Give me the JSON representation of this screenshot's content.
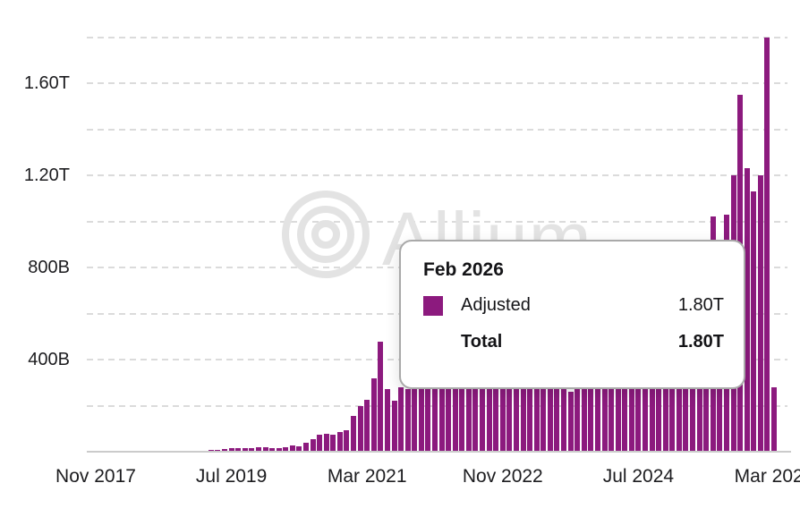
{
  "watermark": {
    "text": "Allium",
    "logo_icon": "concentric-circles"
  },
  "colors": {
    "bar": "#8C1A7E",
    "gridline": "#dbdbdb",
    "axis_line": "#cbcbcb",
    "text": "#1c1c1f",
    "watermark": "#e3e3e3",
    "tooltip_border": "#a9a9a9"
  },
  "tooltip": {
    "title": "Feb 2026",
    "adjusted_label": "Adjusted",
    "adjusted_value": "1.80T",
    "total_label": "Total",
    "total_value": "1.80T"
  },
  "chart_data": {
    "type": "bar",
    "title": "",
    "xlabel": "",
    "ylabel": "",
    "unit": "USD volume, B = billions, T = trillions",
    "ylim": [
      0,
      1850
    ],
    "grid": "dashed horizontal, every 200B",
    "legend_position": "tooltip-only",
    "y_ticks": [
      {
        "label": "400B",
        "value": 400
      },
      {
        "label": "800B",
        "value": 800
      },
      {
        "label": "1.20T",
        "value": 1200
      },
      {
        "label": "1.60T",
        "value": 1600
      }
    ],
    "y_gridline_values": [
      200,
      400,
      600,
      800,
      1000,
      1200,
      1400,
      1600,
      1800
    ],
    "x_ticks": [
      {
        "label": "Nov 2017",
        "month_index": 0
      },
      {
        "label": "Jul 2019",
        "month_index": 20
      },
      {
        "label": "Mar 2021",
        "month_index": 40
      },
      {
        "label": "Nov 2022",
        "month_index": 60
      },
      {
        "label": "Jul 2024",
        "month_index": 80
      },
      {
        "label": "Mar 2026",
        "month_index": 100
      }
    ],
    "series_name": "Adjusted",
    "months": [
      {
        "label": "Nov 2017",
        "value": 0.5
      },
      {
        "label": "Dec 2017",
        "value": 0.8
      },
      {
        "label": "Jan 2018",
        "value": 1.0
      },
      {
        "label": "Feb 2018",
        "value": 1.0
      },
      {
        "label": "Mar 2018",
        "value": 1.2
      },
      {
        "label": "Apr 2018",
        "value": 1.3
      },
      {
        "label": "May 2018",
        "value": 1.5
      },
      {
        "label": "Jun 2018",
        "value": 1.6
      },
      {
        "label": "Jul 2018",
        "value": 1.8
      },
      {
        "label": "Aug 2018",
        "value": 2.0
      },
      {
        "label": "Sep 2018",
        "value": 2.2
      },
      {
        "label": "Oct 2018",
        "value": 2.4
      },
      {
        "label": "Nov 2018",
        "value": 2.6
      },
      {
        "label": "Dec 2018",
        "value": 2.8
      },
      {
        "label": "Jan 2019",
        "value": 3
      },
      {
        "label": "Feb 2019",
        "value": 3
      },
      {
        "label": "Mar 2019",
        "value": 4
      },
      {
        "label": "Apr 2019",
        "value": 6
      },
      {
        "label": "May 2019",
        "value": 8
      },
      {
        "label": "Jun 2019",
        "value": 12
      },
      {
        "label": "Jul 2019",
        "value": 16
      },
      {
        "label": "Aug 2019",
        "value": 14
      },
      {
        "label": "Sep 2019",
        "value": 14
      },
      {
        "label": "Oct 2019",
        "value": 17
      },
      {
        "label": "Nov 2019",
        "value": 19
      },
      {
        "label": "Dec 2019",
        "value": 19
      },
      {
        "label": "Jan 2020",
        "value": 17
      },
      {
        "label": "Feb 2020",
        "value": 16
      },
      {
        "label": "Mar 2020",
        "value": 21
      },
      {
        "label": "Apr 2020",
        "value": 27
      },
      {
        "label": "May 2020",
        "value": 24
      },
      {
        "label": "Jun 2020",
        "value": 40
      },
      {
        "label": "Jul 2020",
        "value": 53
      },
      {
        "label": "Aug 2020",
        "value": 75
      },
      {
        "label": "Sep 2020",
        "value": 78
      },
      {
        "label": "Oct 2020",
        "value": 75
      },
      {
        "label": "Nov 2020",
        "value": 85
      },
      {
        "label": "Dec 2020",
        "value": 95
      },
      {
        "label": "Jan 2021",
        "value": 155
      },
      {
        "label": "Feb 2021",
        "value": 200
      },
      {
        "label": "Mar 2021",
        "value": 225
      },
      {
        "label": "Apr 2021",
        "value": 320
      },
      {
        "label": "May 2021",
        "value": 478
      },
      {
        "label": "Jun 2021",
        "value": 272
      },
      {
        "label": "Jul 2021",
        "value": 222
      },
      {
        "label": "Aug 2021",
        "value": 280
      },
      {
        "label": "Sep 2021",
        "value": 270
      },
      {
        "label": "Oct 2021",
        "value": 310
      },
      {
        "label": "Nov 2021",
        "value": 345
      },
      {
        "label": "Dec 2021",
        "value": 360
      },
      {
        "label": "Jan 2022",
        "value": 380
      },
      {
        "label": "Feb 2022",
        "value": 350
      },
      {
        "label": "Mar 2022",
        "value": 390
      },
      {
        "label": "Apr 2022",
        "value": 410
      },
      {
        "label": "May 2022",
        "value": 490
      },
      {
        "label": "Jun 2022",
        "value": 450
      },
      {
        "label": "Jul 2022",
        "value": 380
      },
      {
        "label": "Aug 2022",
        "value": 360
      },
      {
        "label": "Sep 2022",
        "value": 380
      },
      {
        "label": "Oct 2022",
        "value": 400
      },
      {
        "label": "Nov 2022",
        "value": 460
      },
      {
        "label": "Dec 2022",
        "value": 370
      },
      {
        "label": "Jan 2023",
        "value": 350
      },
      {
        "label": "Feb 2023",
        "value": 370
      },
      {
        "label": "Mar 2023",
        "value": 430
      },
      {
        "label": "Apr 2023",
        "value": 370
      },
      {
        "label": "May 2023",
        "value": 330
      },
      {
        "label": "Jun 2023",
        "value": 310
      },
      {
        "label": "Jul 2023",
        "value": 295
      },
      {
        "label": "Aug 2023",
        "value": 285
      },
      {
        "label": "Sep 2023",
        "value": 262
      },
      {
        "label": "Oct 2023",
        "value": 300
      },
      {
        "label": "Nov 2023",
        "value": 340
      },
      {
        "label": "Dec 2023",
        "value": 390
      },
      {
        "label": "Jan 2024",
        "value": 430
      },
      {
        "label": "Feb 2024",
        "value": 490
      },
      {
        "label": "Mar 2024",
        "value": 570
      },
      {
        "label": "Apr 2024",
        "value": 530
      },
      {
        "label": "May 2024",
        "value": 550
      },
      {
        "label": "Jun 2024",
        "value": 510
      },
      {
        "label": "Jul 2024",
        "value": 490
      },
      {
        "label": "Aug 2024",
        "value": 510
      },
      {
        "label": "Sep 2024",
        "value": 530
      },
      {
        "label": "Oct 2024",
        "value": 570
      },
      {
        "label": "Nov 2024",
        "value": 650
      },
      {
        "label": "Dec 2024",
        "value": 710
      },
      {
        "label": "Jan 2025",
        "value": 730
      },
      {
        "label": "Feb 2025",
        "value": 690
      },
      {
        "label": "Mar 2025",
        "value": 740
      },
      {
        "label": "Apr 2025",
        "value": 790
      },
      {
        "label": "May 2025",
        "value": 860
      },
      {
        "label": "Jun 2025",
        "value": 1020
      },
      {
        "label": "Jul 2025",
        "value": 900
      },
      {
        "label": "Aug 2025",
        "value": 1030
      },
      {
        "label": "Sep 2025",
        "value": 1200
      },
      {
        "label": "Oct 2025",
        "value": 1550
      },
      {
        "label": "Nov 2025",
        "value": 1230
      },
      {
        "label": "Dec 2025",
        "value": 1130
      },
      {
        "label": "Jan 2026",
        "value": 1200
      },
      {
        "label": "Feb 2026",
        "value": 1800
      },
      {
        "label": "Mar 2026",
        "value": 280
      }
    ]
  }
}
